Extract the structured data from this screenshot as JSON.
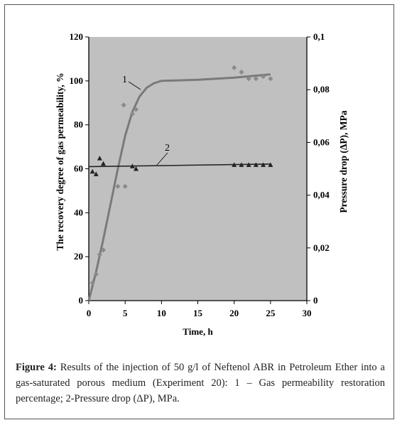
{
  "chart_data": {
    "type": "scatter",
    "title": "",
    "xlabel": "Time, h",
    "ylabel_left": "The recovery degree of gas permeability, %",
    "ylabel_right": "Pressure drop (ΔP), MPa",
    "xlim": [
      0,
      30
    ],
    "ylim_left": [
      0,
      120
    ],
    "ylim_right": [
      0,
      0.1
    ],
    "x_ticks": [
      "0",
      "5",
      "10",
      "15",
      "20",
      "25",
      "30"
    ],
    "y_left_ticks": [
      "0",
      "20",
      "40",
      "60",
      "80",
      "100",
      "120"
    ],
    "y_right_ticks": [
      "0",
      "0,02",
      "0,04",
      "0,06",
      "0,08",
      "0,1"
    ],
    "grid": false,
    "plot_background": "#c0c0c0",
    "curve_labels": [
      "1",
      "2"
    ],
    "series": [
      {
        "name": "1",
        "axis": "left",
        "color": "#7a7a7a",
        "points": [
          [
            0.5,
            8
          ],
          [
            1,
            12
          ],
          [
            1.5,
            21
          ],
          [
            2,
            23
          ],
          [
            4,
            52
          ],
          [
            5,
            52
          ],
          [
            4.8,
            89
          ],
          [
            6,
            85
          ],
          [
            6.5,
            87
          ],
          [
            20,
            106
          ],
          [
            21,
            104
          ],
          [
            22,
            101
          ],
          [
            23,
            101
          ],
          [
            24,
            102
          ],
          [
            25,
            101
          ]
        ],
        "fit": [
          [
            0,
            0
          ],
          [
            1,
            13
          ],
          [
            2,
            28
          ],
          [
            3,
            44
          ],
          [
            4,
            60
          ],
          [
            5,
            75
          ],
          [
            6,
            86
          ],
          [
            7,
            93
          ],
          [
            8,
            97
          ],
          [
            9,
            99
          ],
          [
            10,
            100
          ],
          [
            15,
            100.5
          ],
          [
            20,
            101.5
          ],
          [
            25,
            103
          ]
        ]
      },
      {
        "name": "2",
        "axis": "right",
        "color": "#222222",
        "points": [
          [
            0.5,
            0.049
          ],
          [
            1,
            0.048
          ],
          [
            1.5,
            0.054
          ],
          [
            2,
            0.052
          ],
          [
            6,
            0.051
          ],
          [
            6.5,
            0.05
          ],
          [
            20,
            0.0515
          ],
          [
            21,
            0.0515
          ],
          [
            22,
            0.0515
          ],
          [
            23,
            0.0515
          ],
          [
            24,
            0.0515
          ],
          [
            25,
            0.0515
          ]
        ],
        "fit": [
          [
            0,
            0.0508
          ],
          [
            25,
            0.0518
          ]
        ]
      }
    ]
  },
  "caption": {
    "label": "Figure 4:",
    "text": " Results of the injection of 50 g/l of Neftenol ABR in Petroleum Ether into a gas-saturated porous medium (Experiment 20): 1 – Gas permeability restoration percentage; 2-Pressure drop (ΔP), MPa."
  }
}
